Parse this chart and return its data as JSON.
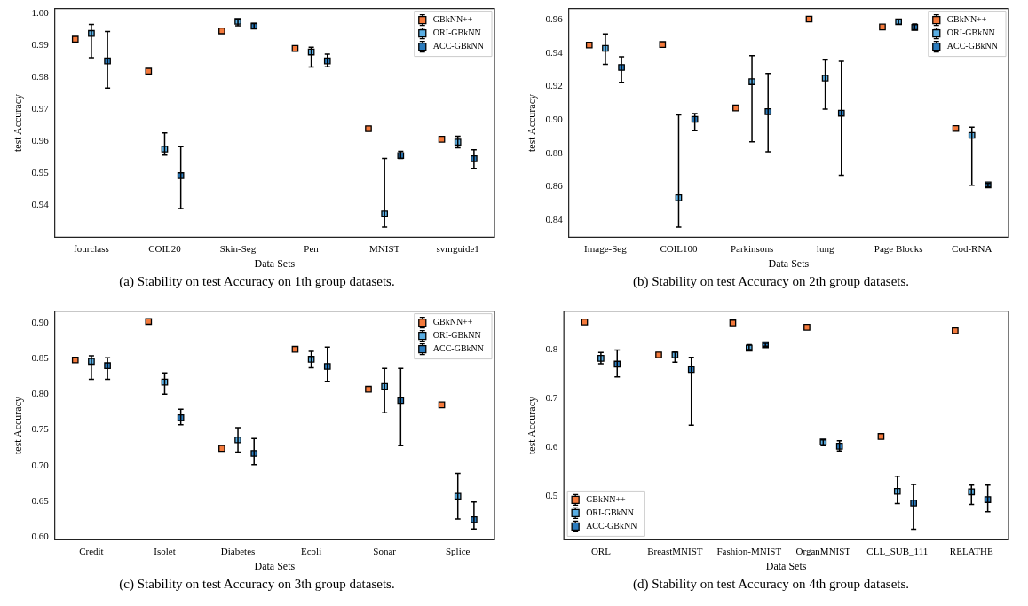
{
  "chart_data": [
    {
      "type": "scatter",
      "title": "(a) Stability on test Accuracy on 1th group datasets.",
      "xlabel": "Data Sets",
      "ylabel": "test Accuracy",
      "categories": [
        "fourclass",
        "COIL20",
        "Skin-Seg",
        "Pen",
        "MNIST",
        "svmguide1"
      ],
      "ylim": [
        0.9299,
        1.0015
      ],
      "yticks": [
        {
          "value": 0.94,
          "label": "0.94"
        },
        {
          "value": 0.95,
          "label": "0.95"
        },
        {
          "value": 0.96,
          "label": "0.96"
        },
        {
          "value": 0.97,
          "label": "0.97"
        },
        {
          "value": 0.98,
          "label": "0.98"
        },
        {
          "value": 0.99,
          "label": "0.99"
        },
        {
          "value": 1.0,
          "label": "1.00"
        }
      ],
      "legend": "top right",
      "marker": "square",
      "series": [
        {
          "name": "GBkNN++",
          "color": "#f47a3c",
          "values": [
            0.9919,
            0.9819,
            0.9945,
            0.989,
            0.9639,
            0.9606
          ]
        },
        {
          "name": "ORI-GBkNN",
          "color": "#5aaee3",
          "values": [
            0.9937,
            0.9575,
            0.9975,
            0.9879,
            0.9372,
            0.9597
          ],
          "errors": [
            [
              0.9861,
              0.9965
            ],
            [
              0.9556,
              0.9626
            ],
            [
              0.9961,
              0.9981
            ],
            [
              0.9832,
              0.9894
            ],
            [
              0.9331,
              0.9546
            ],
            [
              0.9579,
              0.9615
            ]
          ]
        },
        {
          "name": "ACC-GBkNN",
          "color": "#2b7bbd",
          "values": [
            0.9851,
            0.9492,
            0.996,
            0.9851,
            0.9555,
            0.9545
          ],
          "errors": [
            [
              0.9766,
              0.9943
            ],
            [
              0.9389,
              0.9583
            ],
            [
              0.9953,
              0.9968
            ],
            [
              0.9833,
              0.9872
            ],
            [
              0.9546,
              0.9568
            ],
            [
              0.9515,
              0.9573
            ]
          ]
        }
      ]
    },
    {
      "type": "scatter",
      "title": "(b) Stability on test Accuracy on 2th group datasets.",
      "xlabel": "Data Sets",
      "ylabel": "test Accuracy",
      "categories": [
        "Image-Seg",
        "COIL100",
        "Parkinsons",
        "lung",
        "Page Blocks",
        "Cod-RNA"
      ],
      "ylim": [
        0.8299,
        0.9665
      ],
      "yticks": [
        {
          "value": 0.84,
          "label": "0.84"
        },
        {
          "value": 0.86,
          "label": "0.86"
        },
        {
          "value": 0.88,
          "label": "0.88"
        },
        {
          "value": 0.9,
          "label": "0.90"
        },
        {
          "value": 0.92,
          "label": "0.92"
        },
        {
          "value": 0.94,
          "label": "0.94"
        },
        {
          "value": 0.96,
          "label": "0.96"
        }
      ],
      "legend": "top right",
      "marker": "square",
      "series": [
        {
          "name": "GBkNN++",
          "color": "#f47a3c",
          "values": [
            0.9447,
            0.945,
            0.9071,
            0.9602,
            0.9555,
            0.8949
          ]
        },
        {
          "name": "ORI-GBkNN",
          "color": "#5aaee3",
          "values": [
            0.9427,
            0.8535,
            0.9228,
            0.925,
            0.9586,
            0.8908
          ],
          "errors": [
            [
              0.9332,
              0.9513
            ],
            [
              0.836,
              0.903
            ],
            [
              0.887,
              0.9383
            ],
            [
              0.9064,
              0.9358
            ],
            [
              0.9571,
              0.9598
            ],
            [
              0.861,
              0.8957
            ]
          ]
        },
        {
          "name": "ACC-GBkNN",
          "color": "#2b7bbd",
          "values": [
            0.9313,
            0.9003,
            0.9049,
            0.904,
            0.9552,
            0.8612
          ],
          "errors": [
            [
              0.9224,
              0.9377
            ],
            [
              0.8936,
              0.9037
            ],
            [
              0.881,
              0.9278
            ],
            [
              0.867,
              0.935
            ],
            [
              0.9539,
              0.9573
            ],
            [
              0.86,
              0.8621
            ]
          ]
        }
      ]
    },
    {
      "type": "scatter",
      "title": "(c) Stability on test Accuracy on 3th group datasets.",
      "xlabel": "Data Sets",
      "ylabel": "test Accuracy",
      "categories": [
        "Credit",
        "Isolet",
        "Diabetes",
        "Ecoli",
        "Sonar",
        "Splice"
      ],
      "ylim": [
        0.5958,
        0.9166
      ],
      "yticks": [
        {
          "value": 0.6,
          "label": "0.60"
        },
        {
          "value": 0.65,
          "label": "0.65"
        },
        {
          "value": 0.7,
          "label": "0.70"
        },
        {
          "value": 0.75,
          "label": "0.75"
        },
        {
          "value": 0.8,
          "label": "0.80"
        },
        {
          "value": 0.85,
          "label": "0.85"
        },
        {
          "value": 0.9,
          "label": "0.90"
        }
      ],
      "legend": "top right",
      "marker": "square",
      "series": [
        {
          "name": "GBkNN++",
          "color": "#f47a3c",
          "values": [
            0.848,
            0.902,
            0.724,
            0.863,
            0.807,
            0.785
          ]
        },
        {
          "name": "ORI-GBkNN",
          "color": "#5aaee3",
          "values": [
            0.846,
            0.817,
            0.736,
            0.849,
            0.811,
            0.657
          ],
          "errors": [
            [
              0.821,
              0.854
            ],
            [
              0.8,
              0.83
            ],
            [
              0.719,
              0.753
            ],
            [
              0.837,
              0.86
            ],
            [
              0.774,
              0.836
            ],
            [
              0.625,
              0.689
            ]
          ]
        },
        {
          "name": "ACC-GBkNN",
          "color": "#2b7bbd",
          "values": [
            0.84,
            0.767,
            0.717,
            0.839,
            0.791,
            0.624
          ],
          "errors": [
            [
              0.821,
              0.851
            ],
            [
              0.757,
              0.779
            ],
            [
              0.701,
              0.738
            ],
            [
              0.818,
              0.866
            ],
            [
              0.728,
              0.836
            ],
            [
              0.611,
              0.649
            ]
          ]
        }
      ]
    },
    {
      "type": "scatter",
      "title": "(d) Stability on test Accuracy on 4th group datasets.",
      "xlabel": "Data Sets",
      "ylabel": "test Accuracy",
      "categories": [
        "ORL",
        "BreastMNIST",
        "Fashion-MNIST",
        "OrganMNIST",
        "CLL_SUB_111",
        "RELATHE"
      ],
      "ylim": [
        0.4091,
        0.8804
      ],
      "yticks": [
        0.5,
        0.6,
        0.7,
        0.8
      ],
      "legend": "bottom left",
      "marker": "square",
      "series": [
        {
          "name": "GBkNN++",
          "color": "#f47a3c",
          "values": [
            0.858,
            0.79,
            0.856,
            0.847,
            0.622,
            0.84
          ]
        },
        {
          "name": "ORI-GBkNN",
          "color": "#5aaee3",
          "values": [
            0.783,
            0.79,
            0.804,
            0.611,
            0.509,
            0.508
          ],
          "errors": [
            [
              0.772,
              0.795
            ],
            [
              0.775,
              0.796
            ],
            [
              0.801,
              0.811
            ],
            [
              0.603,
              0.615
            ],
            [
              0.484,
              0.54
            ],
            [
              0.482,
              0.522
            ]
          ]
        },
        {
          "name": "ACC-GBkNN",
          "color": "#2b7bbd",
          "values": [
            0.771,
            0.76,
            0.811,
            0.602,
            0.485,
            0.492
          ],
          "errors": [
            [
              0.745,
              0.8
            ],
            [
              0.645,
              0.785
            ],
            [
              0.808,
              0.814
            ],
            [
              0.592,
              0.613
            ],
            [
              0.431,
              0.523
            ],
            [
              0.467,
              0.522
            ]
          ]
        }
      ]
    }
  ]
}
